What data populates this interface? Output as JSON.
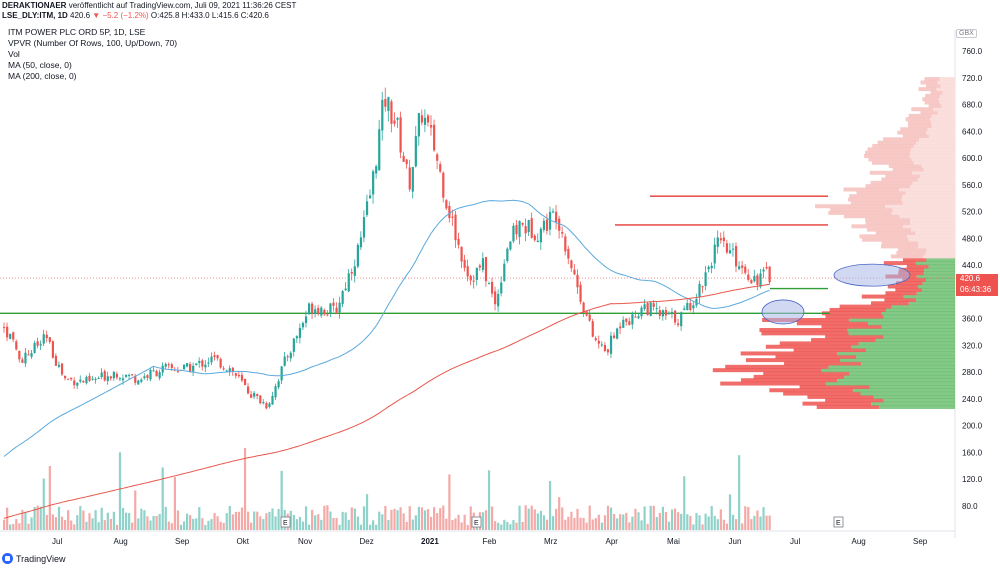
{
  "header": {
    "publisher": "DERAKTIONAER",
    "published_text": "veröffentlicht auf TradingView.com, Juli 09, 2021 11:36:26 CEST",
    "symbol": "LSE_DLY:ITM, 1D",
    "last": "420.6",
    "change": "▼ −5.2 (−1.2%)",
    "ohlc": "O:425.8 H:433.0 L:415.6 C:420.6"
  },
  "legend": {
    "title": "ITM POWER PLC ORD 5P, 1D, LSE",
    "vpvr": "VPVR (Number Of Rows, 100, Up/Down, 70)",
    "vol": "Vol",
    "ma50": "MA (50, close, 0)",
    "ma200": "MA (200, close, 0)"
  },
  "price_axis": {
    "currency": "GBX",
    "last_price": "420.6",
    "countdown": "06:43:36"
  },
  "footer": {
    "brand": "TradingView"
  },
  "colors": {
    "up": "#26a69a",
    "down": "#ef5350",
    "ma50": "#5aa9dc",
    "ma200": "#e8574b",
    "hline_red": "#e53935",
    "hline_green": "#2e9d33",
    "ellipse_fill": "#aab8e8",
    "ellipse_stroke": "#4a66c8"
  },
  "chart_data": {
    "type": "candlestick",
    "title": "ITM POWER PLC ORD 5P, 1D, LSE",
    "ylim": [
      40,
      780
    ],
    "yticks": [
      80,
      120,
      160,
      200,
      240,
      280,
      320,
      360,
      400,
      440,
      480,
      520,
      560,
      600,
      640,
      680,
      720,
      760
    ],
    "xtick_labels": [
      "Jul",
      "Aug",
      "Sep",
      "Okt",
      "Nov",
      "Dez",
      "2021",
      "Feb",
      "Mrz",
      "Apr",
      "Mai",
      "Jun",
      "Jul",
      "Aug",
      "Sep"
    ],
    "price_path": {
      "months_from_start": [
        0,
        0.3,
        0.7,
        1.0,
        1.4,
        1.8,
        2.2,
        2.6,
        3.0,
        3.4,
        3.7,
        4.0,
        4.3,
        4.6,
        5.0,
        5.4,
        5.8,
        6.0,
        6.2,
        6.4,
        6.6,
        6.8,
        7.0,
        7.2,
        7.4,
        7.6,
        7.8,
        8.0,
        8.2,
        8.4,
        8.7,
        9.0,
        9.3,
        9.6,
        9.8,
        10.0,
        10.1,
        10.2,
        10.4,
        10.7,
        11.0,
        11.3,
        11.6,
        11.8,
        12.0,
        12.2,
        12.4,
        12.5
      ],
      "close": [
        350,
        300,
        330,
        270,
        265,
        280,
        270,
        285,
        285,
        300,
        285,
        250,
        230,
        300,
        380,
        370,
        470,
        560,
        690,
        650,
        560,
        670,
        620,
        540,
        470,
        420,
        440,
        380,
        470,
        500,
        490,
        520,
        420,
        330,
        310,
        345,
        370,
        355,
        380,
        365,
        360,
        400,
        470,
        460,
        440,
        420,
        425,
        420.6
      ]
    },
    "hlines": [
      {
        "price": 543,
        "color": "red"
      },
      {
        "price": 500,
        "color": "red"
      },
      {
        "price": 405,
        "color": "green"
      },
      {
        "price": 368,
        "color": "green"
      }
    ],
    "volume_axis": {
      "ticks": [
        80,
        120,
        160,
        200
      ]
    },
    "vpvr_bins_approx": {
      "up_dominant_range": [
        220,
        450
      ],
      "down_dominant_range": [
        450,
        720
      ]
    }
  }
}
